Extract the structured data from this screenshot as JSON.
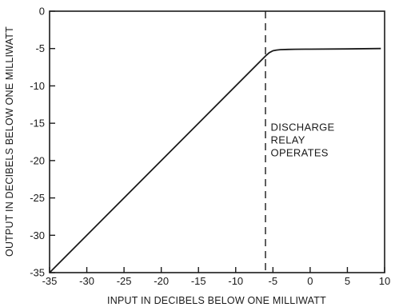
{
  "chart_data": {
    "type": "line",
    "title": "",
    "xlabel": "INPUT IN DECIBELS BELOW ONE MILLIWATT",
    "ylabel": "OUTPUT IN DECIBELS BELOW ONE MILLIWATT",
    "xlim": [
      -35,
      10
    ],
    "ylim": [
      -35,
      0
    ],
    "x_ticks": [
      -35,
      -30,
      -25,
      -20,
      -15,
      -10,
      -5,
      0,
      5,
      10
    ],
    "x_tick_labels": [
      "-35",
      "-30",
      "-25",
      "-20",
      "-15",
      "-10",
      "-5",
      "0",
      "5",
      "10"
    ],
    "y_ticks": [
      0,
      -5,
      -10,
      -15,
      -20,
      -25,
      -30,
      -35
    ],
    "y_tick_labels": [
      "0",
      "-5",
      "-10",
      "-15",
      "-20",
      "-25",
      "-30",
      "-35"
    ],
    "grid": false,
    "series": [
      {
        "x": [
          -35,
          -6,
          -5.5,
          -5,
          -4.5,
          -4,
          -3,
          -2,
          0,
          5,
          9.5
        ],
        "y": [
          -35,
          -6,
          -5.55,
          -5.3,
          -5.2,
          -5.15,
          -5.12,
          -5.1,
          -5.08,
          -5.05,
          -5.0
        ],
        "color": "#1a1a1a"
      }
    ],
    "reference_lines": [
      {
        "axis": "x",
        "value": -6,
        "style": "dashed"
      }
    ],
    "annotations": [
      {
        "lines": [
          "DISCHARGE",
          "RELAY",
          "OPERATES"
        ],
        "x": -5.3,
        "y": -16
      }
    ]
  }
}
